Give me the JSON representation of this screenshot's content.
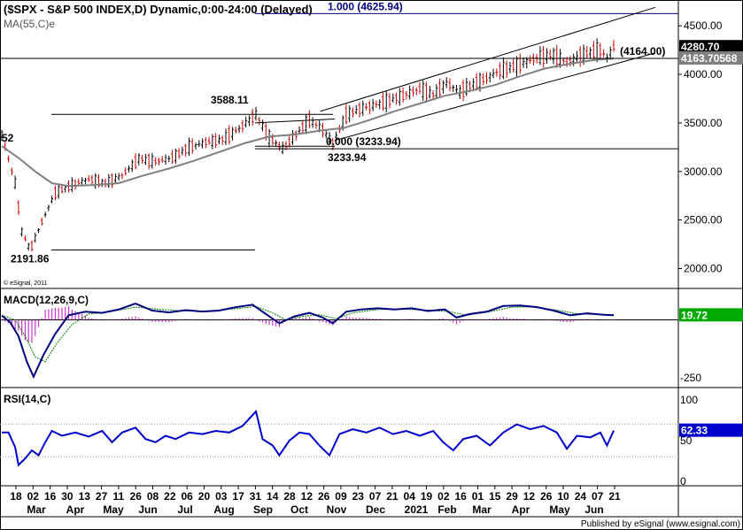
{
  "header": {
    "symbol_title": "($SPX - S&P 500 INDEX,D) Dynamic,0:00-24:00 (Delayed)",
    "ma_label": "MA(55,C)e",
    "watermark": "© eSignal, 2011"
  },
  "footer": {
    "published_by": "Published by eSignal (www.esignal.com)"
  },
  "colors": {
    "background": "#ffffff",
    "axis_panel": "#ffffff",
    "price_bars": "#000000",
    "ma_line": "#808080",
    "trend_lines": "#000000",
    "fib_line": "#000080",
    "macd_line": "#000080",
    "signal_line": "#008000",
    "histogram": "#cc33cc",
    "rsi_line": "#0000cc",
    "current_price_badge": "#000000",
    "ma_badge": "#808080",
    "macd_badge": "#00aa00",
    "rsi_badge": "#0000cc"
  },
  "chart_data": [
    {
      "type": "candlestick",
      "panel": "price",
      "ylim": [
        1850,
        4720
      ],
      "y_ticks": [
        "4500.00",
        "4000.00",
        "3500.00",
        "3000.00",
        "2500.00",
        "2000.00"
      ],
      "y_tick_values": [
        4500,
        4000,
        3500,
        3000,
        2500,
        2000
      ],
      "x_tick_labels": [
        "18",
        "02",
        "16",
        "30",
        "13",
        "27",
        "11",
        "26",
        "08",
        "22",
        "06",
        "20",
        "03",
        "17",
        "31",
        "14",
        "28",
        "12",
        "26",
        "09",
        "23",
        "07",
        "21",
        "04",
        "19",
        "02",
        "16",
        "01",
        "15",
        "29",
        "12",
        "26",
        "10",
        "24",
        "07",
        "21"
      ],
      "month_labels": [
        "Mar",
        "Apr",
        "May",
        "Jun",
        "Jul",
        "Aug",
        "Sep",
        "Oct",
        "Nov",
        "Dec",
        "2021",
        "Feb",
        "Mar",
        "Apr",
        "May",
        "Jun"
      ],
      "price_path": [
        {
          "i": 0,
          "v": 3380
        },
        {
          "i": 4,
          "v": 3130
        },
        {
          "i": 8,
          "v": 2880
        },
        {
          "i": 12,
          "v": 2380
        },
        {
          "i": 17,
          "v": 2191.86
        },
        {
          "i": 24,
          "v": 2480
        },
        {
          "i": 32,
          "v": 2780
        },
        {
          "i": 42,
          "v": 2860
        },
        {
          "i": 52,
          "v": 2920
        },
        {
          "i": 62,
          "v": 2880
        },
        {
          "i": 72,
          "v": 2960
        },
        {
          "i": 82,
          "v": 3130
        },
        {
          "i": 92,
          "v": 3100
        },
        {
          "i": 102,
          "v": 3140
        },
        {
          "i": 112,
          "v": 3250
        },
        {
          "i": 122,
          "v": 3300
        },
        {
          "i": 132,
          "v": 3330
        },
        {
          "i": 142,
          "v": 3440
        },
        {
          "i": 152,
          "v": 3588.11
        },
        {
          "i": 160,
          "v": 3350
        },
        {
          "i": 168,
          "v": 3233.94
        },
        {
          "i": 176,
          "v": 3380
        },
        {
          "i": 184,
          "v": 3530
        },
        {
          "i": 192,
          "v": 3430
        },
        {
          "i": 198,
          "v": 3290
        },
        {
          "i": 206,
          "v": 3580
        },
        {
          "i": 214,
          "v": 3640
        },
        {
          "i": 222,
          "v": 3680
        },
        {
          "i": 230,
          "v": 3720
        },
        {
          "i": 240,
          "v": 3780
        },
        {
          "i": 250,
          "v": 3850
        },
        {
          "i": 258,
          "v": 3790
        },
        {
          "i": 266,
          "v": 3910
        },
        {
          "i": 274,
          "v": 3820
        },
        {
          "i": 282,
          "v": 3900
        },
        {
          "i": 290,
          "v": 3960
        },
        {
          "i": 298,
          "v": 4040
        },
        {
          "i": 306,
          "v": 4080
        },
        {
          "i": 314,
          "v": 4130
        },
        {
          "i": 322,
          "v": 4180
        },
        {
          "i": 330,
          "v": 4200
        },
        {
          "i": 338,
          "v": 4120
        },
        {
          "i": 346,
          "v": 4190
        },
        {
          "i": 352,
          "v": 4230
        },
        {
          "i": 358,
          "v": 4250
        },
        {
          "i": 362,
          "v": 4170
        },
        {
          "i": 366,
          "v": 4280.7
        }
      ],
      "ma_path": [
        {
          "i": 0,
          "v": 3260
        },
        {
          "i": 10,
          "v": 3140
        },
        {
          "i": 20,
          "v": 3000
        },
        {
          "i": 30,
          "v": 2880
        },
        {
          "i": 40,
          "v": 2850
        },
        {
          "i": 55,
          "v": 2860
        },
        {
          "i": 70,
          "v": 2880
        },
        {
          "i": 85,
          "v": 2960
        },
        {
          "i": 100,
          "v": 3030
        },
        {
          "i": 115,
          "v": 3110
        },
        {
          "i": 130,
          "v": 3200
        },
        {
          "i": 145,
          "v": 3290
        },
        {
          "i": 160,
          "v": 3360
        },
        {
          "i": 175,
          "v": 3380
        },
        {
          "i": 190,
          "v": 3420
        },
        {
          "i": 205,
          "v": 3450
        },
        {
          "i": 220,
          "v": 3530
        },
        {
          "i": 235,
          "v": 3620
        },
        {
          "i": 250,
          "v": 3700
        },
        {
          "i": 265,
          "v": 3780
        },
        {
          "i": 280,
          "v": 3830
        },
        {
          "i": 295,
          "v": 3890
        },
        {
          "i": 310,
          "v": 3980
        },
        {
          "i": 325,
          "v": 4060
        },
        {
          "i": 340,
          "v": 4110
        },
        {
          "i": 355,
          "v": 4150
        },
        {
          "i": 366,
          "v": 4163.70568
        }
      ],
      "annotations": {
        "fib_100": "1.000 (4625.94)",
        "fib_100_value": 4625.94,
        "fib_000": "0.000 (3233.94)",
        "fib_000_value": 3233.94,
        "high_label": "3588.11",
        "high_value": 3588.11,
        "low_label": "3233.94",
        "low_value": 3233.94,
        "crash_low_label": "2191.86",
        "crash_low_value": 2191.86,
        "level_label": "(4164.00)",
        "level_value": 4164.0,
        "left_label": "52",
        "last_price": "4280.70",
        "last_price_value": 4280.7,
        "ma_value": "4163.70568",
        "ma_value_num": 4163.70568
      }
    },
    {
      "type": "line",
      "panel": "macd",
      "title": "MACD(12,26,9,C)",
      "ylim": [
        -280,
        120
      ],
      "y_tick_labels": [
        "-250"
      ],
      "y_tick_values": [
        -250
      ],
      "last_value": "19.72",
      "last_value_num": 19.72,
      "macd_path": [
        {
          "i": 0,
          "v": 18
        },
        {
          "i": 5,
          "v": -10
        },
        {
          "i": 10,
          "v": -70
        },
        {
          "i": 15,
          "v": -180
        },
        {
          "i": 19,
          "v": -245
        },
        {
          "i": 25,
          "v": -150
        },
        {
          "i": 32,
          "v": -60
        },
        {
          "i": 40,
          "v": 20
        },
        {
          "i": 50,
          "v": 35
        },
        {
          "i": 60,
          "v": 30
        },
        {
          "i": 70,
          "v": 45
        },
        {
          "i": 80,
          "v": 70
        },
        {
          "i": 90,
          "v": 40
        },
        {
          "i": 100,
          "v": 32
        },
        {
          "i": 110,
          "v": 42
        },
        {
          "i": 120,
          "v": 36
        },
        {
          "i": 130,
          "v": 40
        },
        {
          "i": 140,
          "v": 55
        },
        {
          "i": 150,
          "v": 65
        },
        {
          "i": 158,
          "v": 25
        },
        {
          "i": 166,
          "v": -15
        },
        {
          "i": 175,
          "v": 15
        },
        {
          "i": 184,
          "v": 30
        },
        {
          "i": 192,
          "v": 10
        },
        {
          "i": 198,
          "v": -15
        },
        {
          "i": 206,
          "v": 35
        },
        {
          "i": 215,
          "v": 45
        },
        {
          "i": 225,
          "v": 50
        },
        {
          "i": 235,
          "v": 45
        },
        {
          "i": 245,
          "v": 50
        },
        {
          "i": 255,
          "v": 38
        },
        {
          "i": 265,
          "v": 45
        },
        {
          "i": 272,
          "v": 10
        },
        {
          "i": 280,
          "v": 25
        },
        {
          "i": 290,
          "v": 35
        },
        {
          "i": 300,
          "v": 60
        },
        {
          "i": 310,
          "v": 62
        },
        {
          "i": 320,
          "v": 55
        },
        {
          "i": 330,
          "v": 40
        },
        {
          "i": 340,
          "v": 20
        },
        {
          "i": 350,
          "v": 28
        },
        {
          "i": 360,
          "v": 22
        },
        {
          "i": 366,
          "v": 19.72
        }
      ],
      "signal_path": [
        {
          "i": 0,
          "v": 20
        },
        {
          "i": 8,
          "v": 0
        },
        {
          "i": 14,
          "v": -70
        },
        {
          "i": 20,
          "v": -160
        },
        {
          "i": 26,
          "v": -180
        },
        {
          "i": 33,
          "v": -100
        },
        {
          "i": 42,
          "v": -20
        },
        {
          "i": 52,
          "v": 25
        },
        {
          "i": 65,
          "v": 35
        },
        {
          "i": 80,
          "v": 55
        },
        {
          "i": 95,
          "v": 45
        },
        {
          "i": 110,
          "v": 38
        },
        {
          "i": 125,
          "v": 38
        },
        {
          "i": 140,
          "v": 48
        },
        {
          "i": 152,
          "v": 58
        },
        {
          "i": 162,
          "v": 30
        },
        {
          "i": 170,
          "v": 0
        },
        {
          "i": 180,
          "v": 15
        },
        {
          "i": 190,
          "v": 22
        },
        {
          "i": 200,
          "v": 5
        },
        {
          "i": 210,
          "v": 30
        },
        {
          "i": 225,
          "v": 45
        },
        {
          "i": 240,
          "v": 46
        },
        {
          "i": 255,
          "v": 42
        },
        {
          "i": 268,
          "v": 35
        },
        {
          "i": 278,
          "v": 20
        },
        {
          "i": 292,
          "v": 35
        },
        {
          "i": 305,
          "v": 55
        },
        {
          "i": 318,
          "v": 56
        },
        {
          "i": 332,
          "v": 42
        },
        {
          "i": 345,
          "v": 25
        },
        {
          "i": 366,
          "v": 22
        }
      ]
    },
    {
      "type": "line",
      "panel": "rsi",
      "title": "RSI(14,C)",
      "ylim": [
        0,
        100
      ],
      "y_tick_labels": [
        "100",
        "50",
        "0"
      ],
      "y_tick_values": [
        100,
        50,
        0
      ],
      "last_value": "62.33",
      "last_value_num": 62.33,
      "rsi_path": [
        {
          "i": 0,
          "v": 60
        },
        {
          "i": 4,
          "v": 60
        },
        {
          "i": 8,
          "v": 42
        },
        {
          "i": 10,
          "v": 20
        },
        {
          "i": 14,
          "v": 28
        },
        {
          "i": 18,
          "v": 38
        },
        {
          "i": 22,
          "v": 32
        },
        {
          "i": 26,
          "v": 48
        },
        {
          "i": 30,
          "v": 62
        },
        {
          "i": 36,
          "v": 56
        },
        {
          "i": 44,
          "v": 60
        },
        {
          "i": 52,
          "v": 55
        },
        {
          "i": 60,
          "v": 62
        },
        {
          "i": 66,
          "v": 48
        },
        {
          "i": 72,
          "v": 60
        },
        {
          "i": 80,
          "v": 66
        },
        {
          "i": 86,
          "v": 52
        },
        {
          "i": 92,
          "v": 48
        },
        {
          "i": 98,
          "v": 56
        },
        {
          "i": 104,
          "v": 52
        },
        {
          "i": 112,
          "v": 60
        },
        {
          "i": 120,
          "v": 58
        },
        {
          "i": 128,
          "v": 62
        },
        {
          "i": 136,
          "v": 60
        },
        {
          "i": 144,
          "v": 68
        },
        {
          "i": 152,
          "v": 86
        },
        {
          "i": 156,
          "v": 52
        },
        {
          "i": 162,
          "v": 44
        },
        {
          "i": 166,
          "v": 32
        },
        {
          "i": 172,
          "v": 50
        },
        {
          "i": 178,
          "v": 60
        },
        {
          "i": 184,
          "v": 58
        },
        {
          "i": 190,
          "v": 44
        },
        {
          "i": 196,
          "v": 32
        },
        {
          "i": 202,
          "v": 58
        },
        {
          "i": 210,
          "v": 64
        },
        {
          "i": 218,
          "v": 60
        },
        {
          "i": 226,
          "v": 66
        },
        {
          "i": 234,
          "v": 58
        },
        {
          "i": 242,
          "v": 62
        },
        {
          "i": 250,
          "v": 56
        },
        {
          "i": 258,
          "v": 62
        },
        {
          "i": 264,
          "v": 48
        },
        {
          "i": 270,
          "v": 38
        },
        {
          "i": 276,
          "v": 52
        },
        {
          "i": 284,
          "v": 56
        },
        {
          "i": 292,
          "v": 44
        },
        {
          "i": 300,
          "v": 60
        },
        {
          "i": 308,
          "v": 70
        },
        {
          "i": 316,
          "v": 64
        },
        {
          "i": 324,
          "v": 68
        },
        {
          "i": 332,
          "v": 60
        },
        {
          "i": 338,
          "v": 40
        },
        {
          "i": 344,
          "v": 56
        },
        {
          "i": 352,
          "v": 54
        },
        {
          "i": 358,
          "v": 60
        },
        {
          "i": 362,
          "v": 44
        },
        {
          "i": 366,
          "v": 62.33
        }
      ]
    }
  ]
}
